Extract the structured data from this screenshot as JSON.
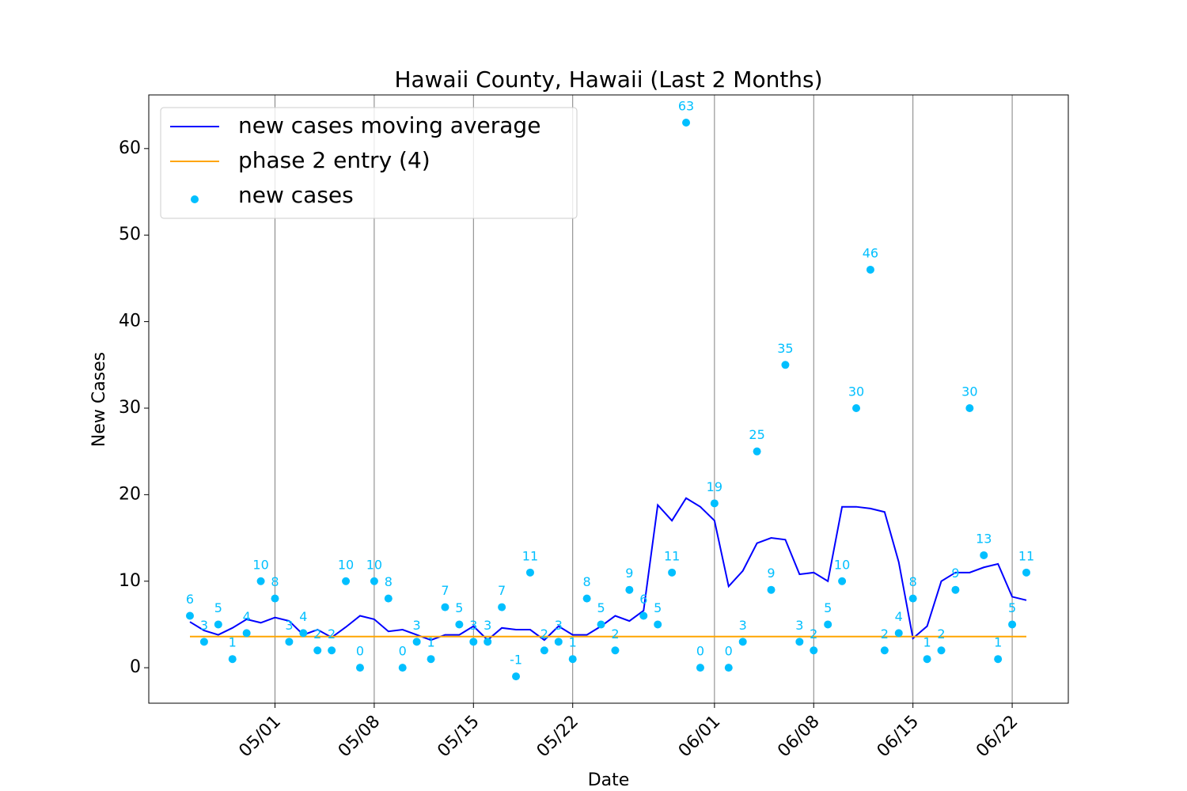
{
  "chart_data": {
    "type": "line",
    "title": "Hawaii County, Hawaii (Last 2 Months)",
    "x_label": "Date",
    "y_label": "New Cases",
    "categories": [
      null,
      null,
      null,
      null,
      null,
      null,
      "05/01",
      null,
      null,
      null,
      null,
      null,
      null,
      "05/08",
      null,
      null,
      null,
      null,
      null,
      null,
      "05/15",
      null,
      null,
      null,
      null,
      null,
      null,
      "05/22",
      null,
      null,
      null,
      null,
      null,
      null,
      null,
      null,
      null,
      "06/01",
      null,
      null,
      null,
      null,
      null,
      null,
      "06/08",
      null,
      null,
      null,
      null,
      null,
      null,
      "06/15",
      null,
      null,
      null,
      null,
      null,
      null,
      "06/22",
      null
    ],
    "ylim": [
      -4.1,
      66.2
    ],
    "yticks": [
      0,
      10,
      20,
      30,
      40,
      50,
      60
    ],
    "grid": "x",
    "legend": "upper left",
    "series": [
      {
        "name": "new cases moving average",
        "type": "line",
        "color": "#0000ff",
        "values": [
          5.3,
          4.3,
          3.8,
          4.6,
          5.6,
          5.2,
          5.8,
          5.4,
          3.8,
          4.4,
          3.5,
          4.7,
          6.0,
          5.6,
          4.2,
          4.4,
          3.8,
          3.2,
          3.8,
          3.8,
          4.8,
          3.2,
          4.6,
          4.4,
          4.4,
          3.2,
          4.8,
          3.8,
          3.8,
          4.8,
          6.0,
          5.4,
          6.6,
          18.8,
          17.0,
          19.6,
          18.6,
          17.0,
          9.4,
          11.2,
          14.4,
          15.0,
          14.8,
          10.8,
          11.0,
          10.0,
          18.6,
          18.6,
          18.4,
          18.0,
          12.2,
          3.4,
          4.8,
          10.0,
          11.0,
          11.0,
          11.6,
          12.0,
          8.2,
          7.8
        ]
      },
      {
        "name": "phase 2 entry (4)",
        "type": "hline",
        "color": "#ffa500",
        "value": 3.6
      },
      {
        "name": "new cases",
        "type": "scatter",
        "color": "#00bfff",
        "values": [
          6,
          3,
          5,
          1,
          4,
          10,
          8,
          3,
          4,
          2,
          2,
          10,
          0,
          10,
          8,
          0,
          3,
          1,
          7,
          5,
          3,
          3,
          7,
          -1,
          11,
          2,
          3,
          1,
          8,
          5,
          2,
          9,
          6,
          5,
          11,
          63,
          0,
          19,
          0,
          3,
          25,
          9,
          35,
          3,
          2,
          5,
          10,
          30,
          46,
          2,
          4,
          8,
          1,
          2,
          9,
          30,
          13,
          1,
          5,
          11
        ]
      }
    ]
  }
}
